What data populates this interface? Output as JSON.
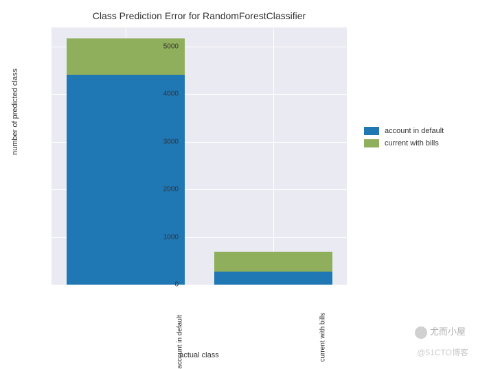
{
  "chart": {
    "type": "stacked-bar",
    "title": "Class Prediction Error for RandomForestClassifier",
    "title_fontsize": 14,
    "xlabel": "actual class",
    "ylabel": "number of predicted class",
    "label_fontsize": 11,
    "tick_fontsize": 10,
    "background_color": "#ffffff",
    "plot_background_color": "#eaeaf2",
    "grid_color": "#ffffff",
    "categories": [
      "account in default",
      "current with bills"
    ],
    "series": [
      {
        "name": "account in default",
        "color": "#1f77b4",
        "values": [
          4400,
          280
        ]
      },
      {
        "name": "current with bills",
        "color": "#8faf5c",
        "values": [
          770,
          410
        ]
      }
    ],
    "ylim": [
      0,
      5400
    ],
    "yticks": [
      0,
      1000,
      2000,
      3000,
      4000,
      5000
    ],
    "bar_width": 0.8,
    "legend_position": "right"
  },
  "watermark1": "尤而小屋",
  "watermark2": "@51CTO博客"
}
